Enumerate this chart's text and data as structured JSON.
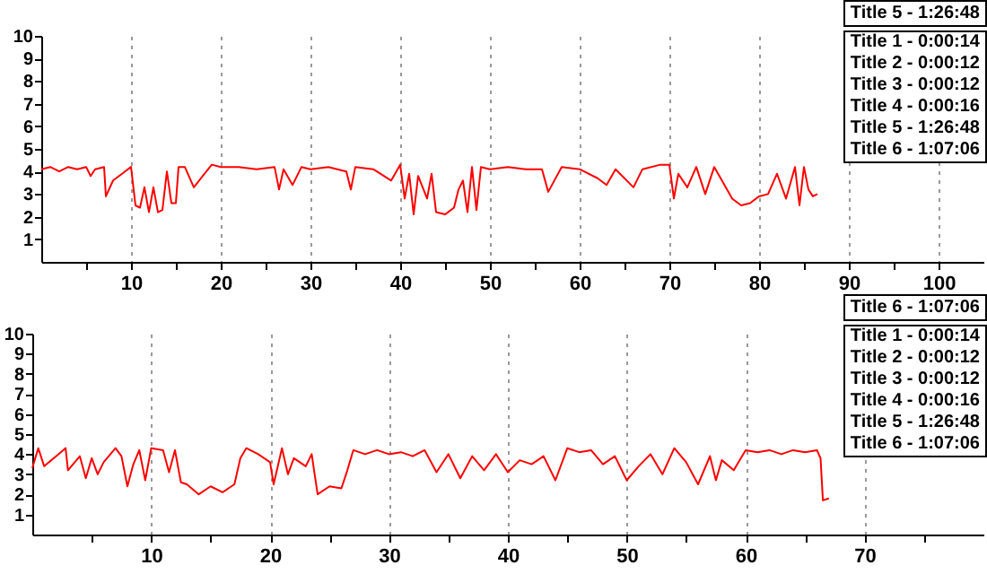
{
  "chart_data": [
    {
      "type": "line",
      "xlim": [
        0,
        105
      ],
      "ylim": [
        0,
        10
      ],
      "yticks": [
        1,
        2,
        3,
        4,
        5,
        6,
        7,
        8,
        9,
        10
      ],
      "xticks": [
        {
          "value": 5,
          "label": null
        },
        10,
        {
          "value": 15,
          "label": null
        },
        20,
        {
          "value": 25,
          "label": null
        },
        30,
        {
          "value": 35,
          "label": null
        },
        40,
        {
          "value": 45,
          "label": null
        },
        50,
        {
          "value": 55,
          "label": null
        },
        60,
        {
          "value": 65,
          "label": null
        },
        70,
        {
          "value": 75,
          "label": null
        },
        80,
        {
          "value": 85,
          "label": null
        },
        90,
        {
          "value": 95,
          "label": null
        },
        100
      ],
      "grid": "x",
      "marker": "none",
      "annotations": [
        "Title 5 - 1:26:48",
        "Title 1 - 0:00:14",
        "Title 2 - 0:00:12",
        "Title 3 - 0:00:12",
        "Title 4 - 0:00:16",
        "Title 5 - 1:26:48",
        "Title 6 - 1:07:06"
      ],
      "series": [
        {
          "color": "#ff0000",
          "x": [
            0,
            1,
            2,
            3,
            4,
            5,
            5.5,
            6,
            7,
            7.2,
            8,
            9,
            10,
            10.5,
            11,
            11.5,
            12,
            12.5,
            13,
            13.5,
            14,
            14.5,
            15,
            15.3,
            16,
            17,
            18,
            19,
            20,
            22,
            24,
            26,
            26.5,
            27,
            28,
            29,
            30,
            32,
            34,
            34.5,
            35,
            37,
            39,
            40,
            40.5,
            41,
            41.5,
            42,
            43,
            43.5,
            44,
            45,
            46,
            46.5,
            47,
            47.5,
            48,
            48.5,
            49,
            50,
            52,
            54,
            55.8,
            56.5,
            58,
            60,
            62,
            63,
            64,
            66,
            67,
            69,
            70,
            70.5,
            71,
            72,
            73,
            74,
            75,
            76,
            77,
            78,
            79,
            80,
            81,
            82,
            83,
            84,
            84.5,
            85,
            85.5,
            86,
            86.5
          ],
          "values": [
            4.1,
            4.2,
            4.0,
            4.2,
            4.1,
            4.2,
            3.8,
            4.1,
            4.2,
            2.9,
            3.6,
            3.9,
            4.2,
            2.5,
            2.4,
            3.3,
            2.2,
            3.3,
            2.2,
            2.3,
            4.0,
            2.6,
            2.6,
            4.2,
            4.2,
            3.3,
            3.8,
            4.3,
            4.2,
            4.2,
            4.1,
            4.2,
            3.2,
            4.1,
            3.4,
            4.2,
            4.1,
            4.2,
            4.0,
            3.2,
            4.2,
            4.1,
            3.6,
            4.3,
            2.8,
            3.9,
            2.1,
            3.8,
            2.8,
            3.9,
            2.2,
            2.1,
            2.4,
            3.2,
            3.6,
            2.2,
            4.2,
            2.3,
            4.2,
            4.1,
            4.2,
            4.1,
            4.1,
            3.1,
            4.2,
            4.1,
            3.7,
            3.4,
            4.1,
            3.3,
            4.1,
            4.3,
            4.3,
            2.8,
            3.9,
            3.3,
            4.2,
            3.0,
            4.2,
            3.5,
            2.8,
            2.5,
            2.6,
            2.9,
            3.0,
            3.9,
            2.8,
            4.2,
            2.5,
            4.2,
            3.2,
            2.9,
            3.0
          ]
        }
      ]
    },
    {
      "type": "line",
      "xlim": [
        0,
        80
      ],
      "ylim": [
        0,
        10
      ],
      "yticks": [
        1,
        2,
        3,
        4,
        5,
        6,
        7,
        8,
        9,
        10
      ],
      "xticks": [
        {
          "value": 5,
          "label": null
        },
        10,
        {
          "value": 15,
          "label": null
        },
        20,
        {
          "value": 25,
          "label": null
        },
        30,
        {
          "value": 35,
          "label": null
        },
        40,
        {
          "value": 45,
          "label": null
        },
        50,
        {
          "value": 55,
          "label": null
        },
        60,
        {
          "value": 65,
          "label": null
        },
        70,
        {
          "value": 75,
          "label": null
        }
      ],
      "grid": "x",
      "marker": "none",
      "annotations": [
        "Title 6 - 1:07:06",
        "Title 1 - 0:00:14",
        "Title 2 - 0:00:12",
        "Title 3 - 0:00:12",
        "Title 4 - 0:00:16",
        "Title 5 - 1:26:48",
        "Title 6 - 1:07:06"
      ],
      "series": [
        {
          "color": "#ff0000",
          "x": [
            0,
            0.5,
            1,
            2,
            2.8,
            3,
            4,
            4.5,
            5,
            5.5,
            6,
            7,
            7.5,
            8,
            8.5,
            9,
            9.5,
            10,
            11,
            11.5,
            12,
            12.5,
            13,
            14,
            15,
            16,
            17,
            17.5,
            18,
            19,
            20,
            20.3,
            21,
            21.5,
            22,
            23,
            23.5,
            24,
            25,
            26,
            26.5,
            27,
            28,
            29,
            30,
            31,
            32,
            33,
            34,
            35,
            36,
            37,
            38,
            39,
            40,
            41,
            42,
            43,
            44,
            45,
            46,
            47,
            48,
            49,
            50,
            51,
            52,
            53,
            54,
            55,
            56,
            57,
            57.5,
            58,
            59,
            60,
            61,
            62,
            63,
            64,
            65,
            66,
            66.3,
            66.5,
            67
          ],
          "values": [
            3.3,
            4.3,
            3.4,
            3.9,
            4.3,
            3.2,
            3.9,
            2.8,
            3.8,
            3.0,
            3.6,
            4.3,
            3.9,
            2.4,
            3.5,
            4.2,
            2.7,
            4.3,
            4.2,
            3.1,
            4.2,
            2.6,
            2.5,
            2.0,
            2.4,
            2.1,
            2.5,
            3.8,
            4.3,
            4.0,
            3.6,
            2.5,
            4.3,
            3.0,
            3.8,
            3.4,
            4.0,
            2.0,
            2.4,
            2.3,
            3.2,
            4.2,
            4.0,
            4.2,
            4.0,
            4.1,
            3.9,
            4.2,
            3.1,
            4.0,
            2.8,
            3.9,
            3.2,
            4.0,
            3.1,
            3.7,
            3.5,
            3.9,
            2.7,
            4.3,
            4.1,
            4.2,
            3.5,
            3.9,
            2.7,
            3.4,
            4.0,
            3.0,
            4.3,
            3.6,
            2.5,
            3.9,
            2.7,
            3.7,
            3.2,
            4.2,
            4.1,
            4.2,
            4.0,
            4.2,
            4.1,
            4.2,
            3.8,
            1.7,
            1.8
          ]
        }
      ]
    }
  ]
}
